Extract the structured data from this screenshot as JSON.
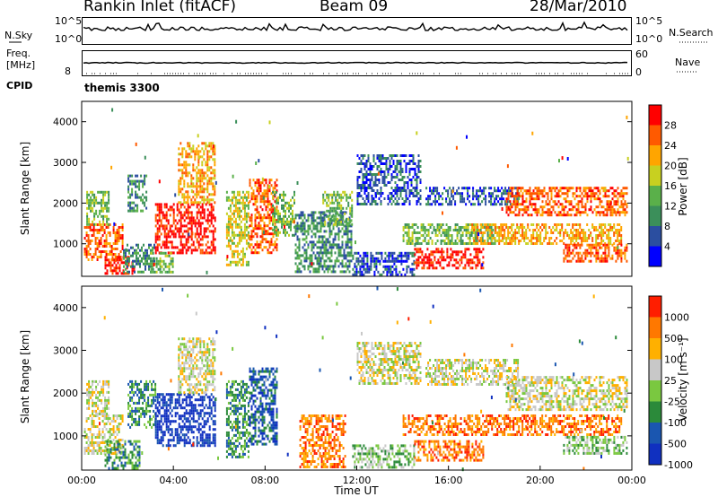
{
  "header": {
    "station": "Rankin Inlet (fitACF)",
    "beam": "Beam 09",
    "date": "28/Mar/2010"
  },
  "noise_panel": {
    "left_label": "N.Sky",
    "right_label": "N.Search",
    "left_ticks": [
      "10^5",
      "10^0"
    ],
    "right_ticks": [
      "10^5",
      "10^0"
    ]
  },
  "freq_panel": {
    "left_label_line1": "Freq.",
    "left_label_line2": "[MHz]",
    "right_label": "Nave",
    "left_ticks": [
      "8"
    ],
    "right_ticks": [
      "60",
      "0"
    ]
  },
  "cpid": {
    "label": "CPID",
    "value": "themis 3300"
  },
  "colors": {
    "power_scale": [
      "#0000ff",
      "#2b4ea0",
      "#3b8f5a",
      "#5ab04a",
      "#c8d020",
      "#ffa500",
      "#ff5a00",
      "#ff0000"
    ],
    "velocity_scale": [
      "#1030c0",
      "#1a56b0",
      "#2b8a3a",
      "#7ac840",
      "#c8c8c8",
      "#ffb000",
      "#ff7800",
      "#ff1e00"
    ]
  },
  "chart_data": [
    {
      "type": "heatmap",
      "name": "power",
      "xlabel": "",
      "ylabel": "Slant Range [km]",
      "yticks": [
        1000,
        2000,
        3000,
        4000
      ],
      "ylim": [
        200,
        4500
      ],
      "xlim_hours": [
        0,
        24
      ],
      "colorbar_label": "Power [dB]",
      "colorbar_ticks": [
        "28",
        "24",
        "20",
        "16",
        "12",
        "8",
        "4"
      ],
      "regions": [
        {
          "t0": 0.1,
          "t1": 1.8,
          "r0": 600,
          "r1": 1500,
          "level": 6
        },
        {
          "t0": 0.2,
          "t1": 1.2,
          "r0": 1500,
          "r1": 2300,
          "level": 3
        },
        {
          "t0": 1.0,
          "t1": 2.3,
          "r0": 250,
          "r1": 700,
          "level": 7
        },
        {
          "t0": 1.8,
          "t1": 3.2,
          "r0": 300,
          "r1": 1000,
          "level": 2
        },
        {
          "t0": 2.0,
          "t1": 2.8,
          "r0": 1800,
          "r1": 2700,
          "level": 2
        },
        {
          "t0": 3.2,
          "t1": 5.8,
          "r0": 800,
          "r1": 2000,
          "level": 7
        },
        {
          "t0": 4.2,
          "t1": 5.8,
          "r0": 2000,
          "r1": 3500,
          "level": 5
        },
        {
          "t0": 3.0,
          "t1": 4.0,
          "r0": 300,
          "r1": 800,
          "level": 3
        },
        {
          "t0": 6.3,
          "t1": 7.3,
          "r0": 500,
          "r1": 2300,
          "level": 4
        },
        {
          "t0": 7.3,
          "t1": 8.5,
          "r0": 800,
          "r1": 2600,
          "level": 6
        },
        {
          "t0": 8.3,
          "t1": 9.3,
          "r0": 1200,
          "r1": 2300,
          "level": 3
        },
        {
          "t0": 9.3,
          "t1": 11.8,
          "r0": 300,
          "r1": 1800,
          "level": 2
        },
        {
          "t0": 10.5,
          "t1": 11.8,
          "r0": 1500,
          "r1": 2300,
          "level": 3
        },
        {
          "t0": 11.8,
          "t1": 14.5,
          "r0": 250,
          "r1": 800,
          "level": 1
        },
        {
          "t0": 12.0,
          "t1": 14.8,
          "r0": 2000,
          "r1": 3200,
          "level": 1
        },
        {
          "t0": 14.0,
          "t1": 18.0,
          "r0": 1000,
          "r1": 1500,
          "level": 3
        },
        {
          "t0": 14.5,
          "t1": 17.5,
          "r0": 400,
          "r1": 900,
          "level": 7
        },
        {
          "t0": 15.0,
          "t1": 19.0,
          "r0": 2000,
          "r1": 2400,
          "level": 1
        },
        {
          "t0": 17.0,
          "t1": 23.5,
          "r0": 1000,
          "r1": 1500,
          "level": 5
        },
        {
          "t0": 18.5,
          "t1": 23.8,
          "r0": 1700,
          "r1": 2400,
          "level": 6
        },
        {
          "t0": 21.0,
          "t1": 23.8,
          "r0": 600,
          "r1": 1000,
          "level": 6
        }
      ]
    },
    {
      "type": "heatmap",
      "name": "velocity",
      "xlabel": "Time UT",
      "ylabel": "Slant Range [km]",
      "xticks": [
        "00:00",
        "04:00",
        "08:00",
        "12:00",
        "16:00",
        "20:00",
        "00:00"
      ],
      "yticks": [
        1000,
        2000,
        3000,
        4000
      ],
      "ylim": [
        200,
        4500
      ],
      "xlim_hours": [
        0,
        24
      ],
      "colorbar_label": "Velocity [m s⁻¹]",
      "colorbar_ticks": [
        "1000",
        "500",
        "100",
        "25",
        "-25",
        "-100",
        "-500",
        "-1000"
      ],
      "regions": [
        {
          "t0": 0.1,
          "t1": 1.8,
          "r0": 600,
          "r1": 1500,
          "level": 4
        },
        {
          "t0": 0.2,
          "t1": 1.2,
          "r0": 1500,
          "r1": 2300,
          "level": 4
        },
        {
          "t0": 1.0,
          "t1": 2.5,
          "r0": 250,
          "r1": 900,
          "level": 2
        },
        {
          "t0": 2.0,
          "t1": 3.2,
          "r0": 1200,
          "r1": 2300,
          "level": 2
        },
        {
          "t0": 3.2,
          "t1": 5.8,
          "r0": 800,
          "r1": 2000,
          "level": 0
        },
        {
          "t0": 4.2,
          "t1": 5.8,
          "r0": 2000,
          "r1": 3300,
          "level": 4
        },
        {
          "t0": 6.3,
          "t1": 7.3,
          "r0": 500,
          "r1": 2300,
          "level": 2
        },
        {
          "t0": 7.3,
          "t1": 8.5,
          "r0": 800,
          "r1": 2600,
          "level": 1
        },
        {
          "t0": 9.5,
          "t1": 11.5,
          "r0": 300,
          "r1": 1500,
          "level": 6
        },
        {
          "t0": 11.8,
          "t1": 14.5,
          "r0": 250,
          "r1": 800,
          "level": 3
        },
        {
          "t0": 12.0,
          "t1": 14.8,
          "r0": 2200,
          "r1": 3200,
          "level": 4
        },
        {
          "t0": 14.0,
          "t1": 17.0,
          "r0": 1000,
          "r1": 1500,
          "level": 6
        },
        {
          "t0": 14.5,
          "t1": 17.5,
          "r0": 400,
          "r1": 900,
          "level": 6
        },
        {
          "t0": 15.0,
          "t1": 19.0,
          "r0": 2200,
          "r1": 2800,
          "level": 4
        },
        {
          "t0": 17.0,
          "t1": 23.5,
          "r0": 1000,
          "r1": 1500,
          "level": 6
        },
        {
          "t0": 18.5,
          "t1": 23.8,
          "r0": 1600,
          "r1": 2400,
          "level": 4
        },
        {
          "t0": 21.0,
          "t1": 23.8,
          "r0": 600,
          "r1": 1000,
          "level": 3
        }
      ]
    }
  ]
}
